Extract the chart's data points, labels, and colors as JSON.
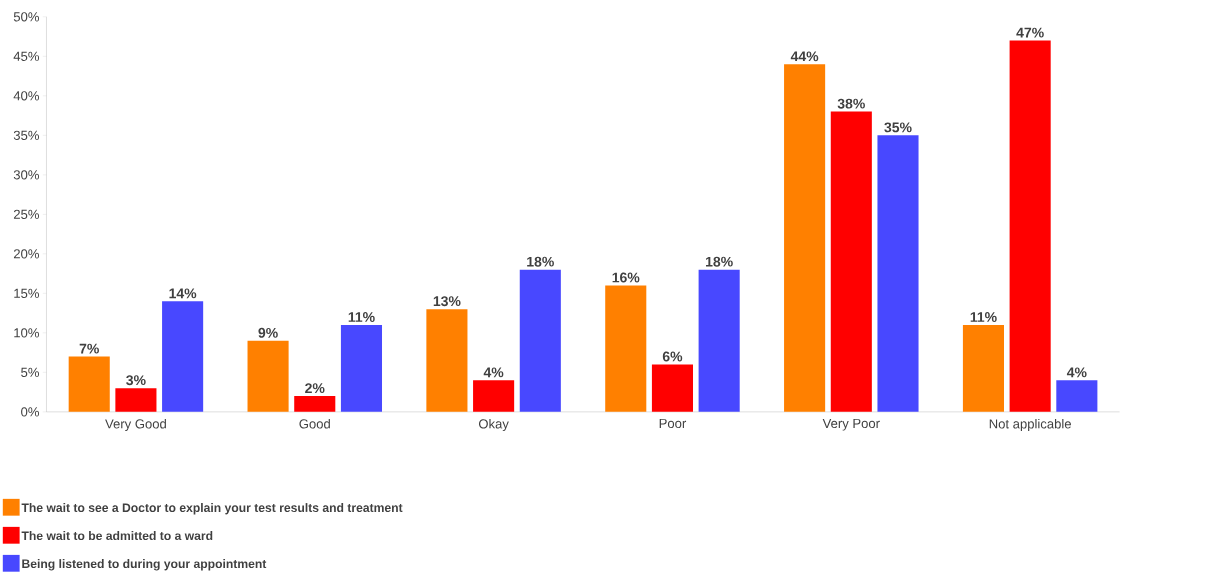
{
  "chart_data": {
    "type": "bar",
    "categories": [
      "Very Good",
      "Good",
      "Okay",
      "Poor",
      "Very Poor",
      "Not applicable"
    ],
    "series": [
      {
        "name": "The wait to see a Doctor to explain your test results and treatment",
        "color": "#ff8000",
        "values": [
          7,
          9,
          13,
          16,
          44,
          11
        ],
        "value_labels": [
          "7%",
          "9%",
          "13%",
          "16%",
          "44%",
          "11%"
        ]
      },
      {
        "name": "The wait to be admitted to a ward",
        "color": "#ff0000",
        "values": [
          3,
          2,
          4,
          6,
          38,
          47
        ],
        "value_labels": [
          "3%",
          "2%",
          "4%",
          "6%",
          "38%",
          "47%"
        ]
      },
      {
        "name": "Being listened to during your appointment",
        "color": "#4848ff",
        "values": [
          14,
          11,
          18,
          18,
          35,
          4
        ],
        "value_labels": [
          "14%",
          "11%",
          "18%",
          "18%",
          "35%",
          "4%"
        ]
      }
    ],
    "ylim": [
      0,
      50
    ],
    "yticks": [
      {
        "value": 0,
        "label": "0%"
      },
      {
        "value": 5,
        "label": "5%"
      },
      {
        "value": 10,
        "label": "10%"
      },
      {
        "value": 15,
        "label": "15%"
      },
      {
        "value": 20,
        "label": "20%"
      },
      {
        "value": 25,
        "label": "25%"
      },
      {
        "value": 30,
        "label": "30%"
      },
      {
        "value": 35,
        "label": "35%"
      },
      {
        "value": 40,
        "label": "40%"
      },
      {
        "value": 45,
        "label": "45%"
      },
      {
        "value": 50,
        "label": "50%"
      }
    ],
    "grid": false,
    "legend": "bottom"
  }
}
